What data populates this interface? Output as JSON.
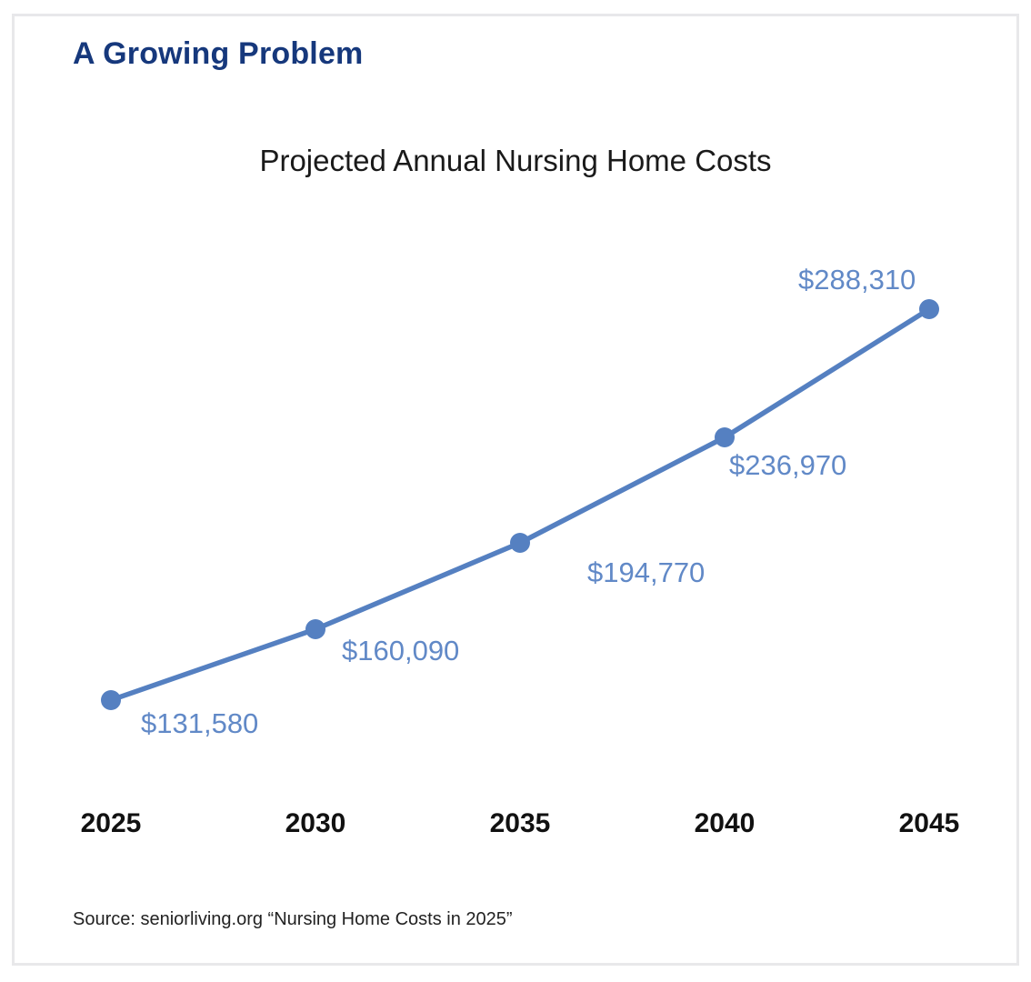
{
  "page": {
    "title": "A Growing Problem",
    "source_note": "Source: seniorliving.org “Nursing Home Costs in 2025”"
  },
  "colors": {
    "heading_navy": "#16387C",
    "line_blue": "#5580C1",
    "data_label_blue": "#6189C7",
    "axis_text_black": "#111111",
    "chart_title_black": "#1A1A1A",
    "frame_border_gray": "#E8E8EA",
    "background": "#FFFFFF"
  },
  "chart_data": {
    "type": "line",
    "title": "Projected Annual Nursing Home Costs",
    "x": [
      "2025",
      "2030",
      "2035",
      "2040",
      "2045"
    ],
    "series": [
      {
        "name": "Projected annual nursing home cost",
        "values": [
          131580,
          160090,
          194770,
          236970,
          288310
        ],
        "point_labels": [
          "$131,580",
          "$160,090",
          "$194,770",
          "$236,970",
          "$288,310"
        ]
      }
    ],
    "xlabel": "",
    "ylabel": "",
    "xlim": [
      2025,
      2045
    ],
    "ylim": [
      120000,
      300000
    ],
    "grid": false,
    "axes_lines": false,
    "legend_position": "none",
    "marker": "circle"
  }
}
